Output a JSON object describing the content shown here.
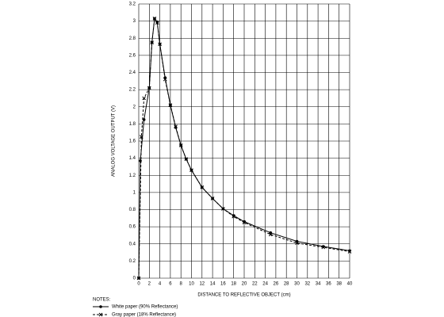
{
  "chart_data": {
    "type": "line",
    "xlabel": "DISTANCE TO REFLECTIVE OBJECT (cm)",
    "ylabel": "ANALOG VOLTAGE OUTPUT (V)",
    "notes_title": "NOTES:",
    "xlim": [
      0,
      40
    ],
    "xticks": [
      0,
      2,
      4,
      6,
      8,
      10,
      12,
      14,
      16,
      18,
      20,
      22,
      24,
      26,
      28,
      30,
      32,
      34,
      36,
      38,
      40
    ],
    "ylim": [
      0,
      3.2
    ],
    "yticks": [
      0,
      0.2,
      0.4,
      0.6,
      0.8,
      1,
      1.2,
      1.4,
      1.6,
      1.8,
      2,
      2.2,
      2.4,
      2.6,
      2.8,
      3,
      3.2
    ],
    "grid": true,
    "series": [
      {
        "name": "White paper (90% Reflectance)",
        "color": "#000000",
        "marker": "dot",
        "dashed": false,
        "x": [
          0,
          0.3,
          1,
          2,
          2.5,
          3,
          3.5,
          4,
          5,
          6,
          7,
          8,
          9,
          10,
          12,
          14,
          16,
          18,
          20,
          25,
          30,
          35,
          40
        ],
        "values": [
          0,
          1.37,
          1.85,
          2.22,
          2.75,
          3.03,
          2.99,
          2.73,
          2.34,
          2.02,
          1.76,
          1.55,
          1.39,
          1.26,
          1.06,
          0.93,
          0.81,
          0.73,
          0.66,
          0.53,
          0.43,
          0.37,
          0.32
        ]
      },
      {
        "name": "Gray paper (18% Reflectance)",
        "color": "#000000",
        "marker": "cross",
        "dashed": true,
        "x": [
          0,
          0.5,
          1,
          2,
          2.5,
          3,
          3.5,
          4,
          5,
          6,
          7,
          8,
          9,
          10,
          12,
          14,
          16,
          18,
          20,
          25,
          30,
          35,
          40
        ],
        "values": [
          0,
          1.65,
          2.1,
          2.22,
          2.75,
          3.03,
          2.98,
          2.73,
          2.32,
          2.02,
          1.77,
          1.55,
          1.39,
          1.26,
          1.06,
          0.93,
          0.81,
          0.72,
          0.65,
          0.51,
          0.41,
          0.36,
          0.31
        ]
      }
    ]
  }
}
